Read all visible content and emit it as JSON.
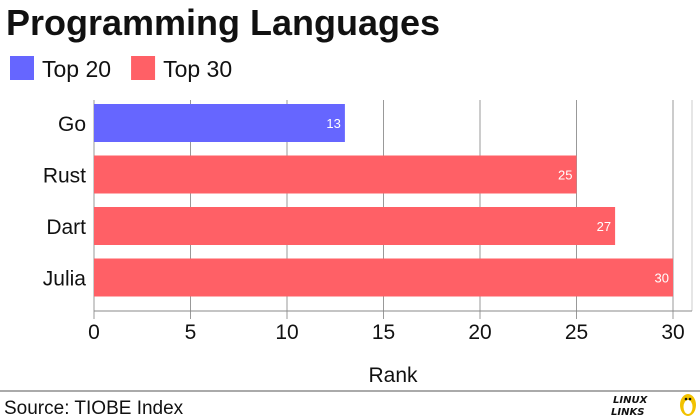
{
  "chart_data": {
    "type": "bar",
    "orientation": "horizontal",
    "title": "Programming Languages",
    "categories": [
      "Go",
      "Rust",
      "Dart",
      "Julia"
    ],
    "values": [
      13,
      25,
      27,
      30
    ],
    "groups": [
      "Top 20",
      "Top 30",
      "Top 30",
      "Top 30"
    ],
    "legend": [
      {
        "name": "Top 20",
        "color": "#6666ff"
      },
      {
        "name": "Top 30",
        "color": "#ff6066"
      }
    ],
    "xlabel": "Rank",
    "ylabel": "",
    "xlim": [
      0,
      30
    ],
    "x_ticks": [
      0,
      5,
      10,
      15,
      20,
      25,
      30
    ],
    "grid": true,
    "legend_position": "top-left",
    "data_labels": true
  },
  "footer": {
    "source": "Source: TIOBE Index",
    "logo_line1": "LINUX",
    "logo_line2": "LINKS"
  },
  "colors": {
    "grid": "#999999",
    "axis": "#888888",
    "footer_rule": "#555555"
  }
}
